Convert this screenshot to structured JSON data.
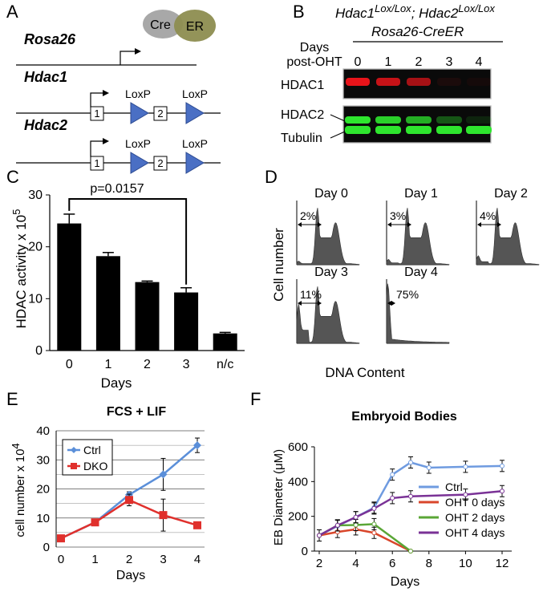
{
  "panelA": {
    "label": "A",
    "rosa": "Rosa26",
    "cre": "Cre",
    "er": "ER",
    "hdac1": "Hdac1",
    "hdac2": "Hdac2",
    "exon1": "1",
    "exon2": "2",
    "loxp": "LoxP"
  },
  "panelB": {
    "label": "B",
    "genotype1": "Hdac1",
    "sup1": "Lox/Lox",
    "sep": "; ",
    "genotype2": "Hdac2",
    "sup2": "Lox/Lox",
    "driver": "Rosa26-CreER",
    "days_label_1": "Days",
    "days_label_2": "post-OHT",
    "lanes": [
      "0",
      "1",
      "2",
      "3",
      "4"
    ],
    "hdac1": "HDAC1",
    "hdac2": "HDAC2",
    "tubulin": "Tubulin",
    "hdac1_band_intensity": [
      1.0,
      0.85,
      0.7,
      0.08,
      0.05
    ],
    "hdac2_band_intensity": [
      1.0,
      0.9,
      0.75,
      0.35,
      0.12
    ],
    "tubulin_band_intensity": [
      1.0,
      1.0,
      1.0,
      1.0,
      1.0
    ],
    "colors": {
      "hdac1": "#e8141a",
      "green": "#2ee62e"
    }
  },
  "chart_data": [
    {
      "panel": "C",
      "type": "bar",
      "label": "C",
      "categories": [
        "0",
        "1",
        "2",
        "3",
        "n/c"
      ],
      "values": [
        24.5,
        18.2,
        13.2,
        11.2,
        3.3
      ],
      "errors": [
        1.8,
        0.7,
        0.2,
        0.9,
        0.2
      ],
      "ylabel_main": "HDAC activity x 10",
      "ylabel_sup": "5",
      "xlabel": "Days",
      "ylim": [
        0,
        30
      ],
      "yticks": [
        "0",
        "10",
        "20",
        "30"
      ],
      "annotation": "p=0.0157",
      "color": "#000000"
    },
    {
      "panel": "D",
      "type": "area",
      "label": "D",
      "ylabel": "Cell number",
      "xlabel": "DNA Content",
      "histograms": [
        {
          "title": "Day 0",
          "subG1": "2%"
        },
        {
          "title": "Day 1",
          "subG1": "3%"
        },
        {
          "title": "Day 2",
          "subG1": "4%"
        },
        {
          "title": "Day 3",
          "subG1": "11%"
        },
        {
          "title": "Day 4",
          "subG1": "75%"
        }
      ],
      "fill": "#555555"
    },
    {
      "panel": "E",
      "type": "line",
      "label": "E",
      "title": "FCS + LIF",
      "ylabel_main": "cell number x 10",
      "ylabel_sup": "4",
      "xlabel": "Days",
      "x": [
        0,
        1,
        2,
        3,
        4
      ],
      "xticks": [
        "0",
        "1",
        "2",
        "3",
        "4"
      ],
      "ylim": [
        0,
        40
      ],
      "yticks": [
        "0",
        "10",
        "20",
        "30",
        "40"
      ],
      "grid": true,
      "legend_position": "top-left",
      "series": [
        {
          "name": "Ctrl",
          "values": [
            3,
            8.5,
            18,
            25,
            35
          ],
          "errors": [
            0,
            0.5,
            1,
            5.5,
            2.5
          ],
          "color": "#5b8fd9"
        },
        {
          "name": "DKO",
          "values": [
            3,
            8.5,
            16.2,
            11,
            7.5
          ],
          "errors": [
            0,
            0.5,
            2,
            5.5,
            0.5
          ],
          "color": "#e0302c"
        }
      ]
    },
    {
      "panel": "F",
      "type": "line",
      "label": "F",
      "title": "Embryoid Bodies",
      "ylabel": "EB Diameter (μM)",
      "xlabel": "Days",
      "xlim": [
        2,
        12
      ],
      "xticks": [
        "2",
        "4",
        "6",
        "8",
        "10",
        "12"
      ],
      "ylim": [
        0,
        600
      ],
      "yticks": [
        "0",
        "200",
        "400",
        "600"
      ],
      "legend_position": "bottom-right",
      "series": [
        {
          "name": "Ctrl",
          "x": [
            2,
            3,
            4,
            5,
            6,
            7,
            8,
            10,
            12
          ],
          "values": [
            90,
            145,
            195,
            250,
            440,
            510,
            480,
            485,
            490
          ],
          "color": "#6f9be0"
        },
        {
          "name": "OHT 0 days",
          "x": [
            2,
            3,
            4,
            5,
            7
          ],
          "values": [
            90,
            110,
            125,
            105,
            0
          ],
          "color": "#d9462b"
        },
        {
          "name": "OHT 2 days",
          "x": [
            2,
            3,
            4,
            5,
            7
          ],
          "values": [
            90,
            148,
            150,
            155,
            0
          ],
          "color": "#5aa636"
        },
        {
          "name": "OHT 4 days",
          "x": [
            2,
            3,
            4,
            5,
            6,
            7,
            10,
            12
          ],
          "values": [
            90,
            148,
            195,
            245,
            305,
            315,
            325,
            345
          ],
          "color": "#7a3296"
        }
      ]
    }
  ]
}
